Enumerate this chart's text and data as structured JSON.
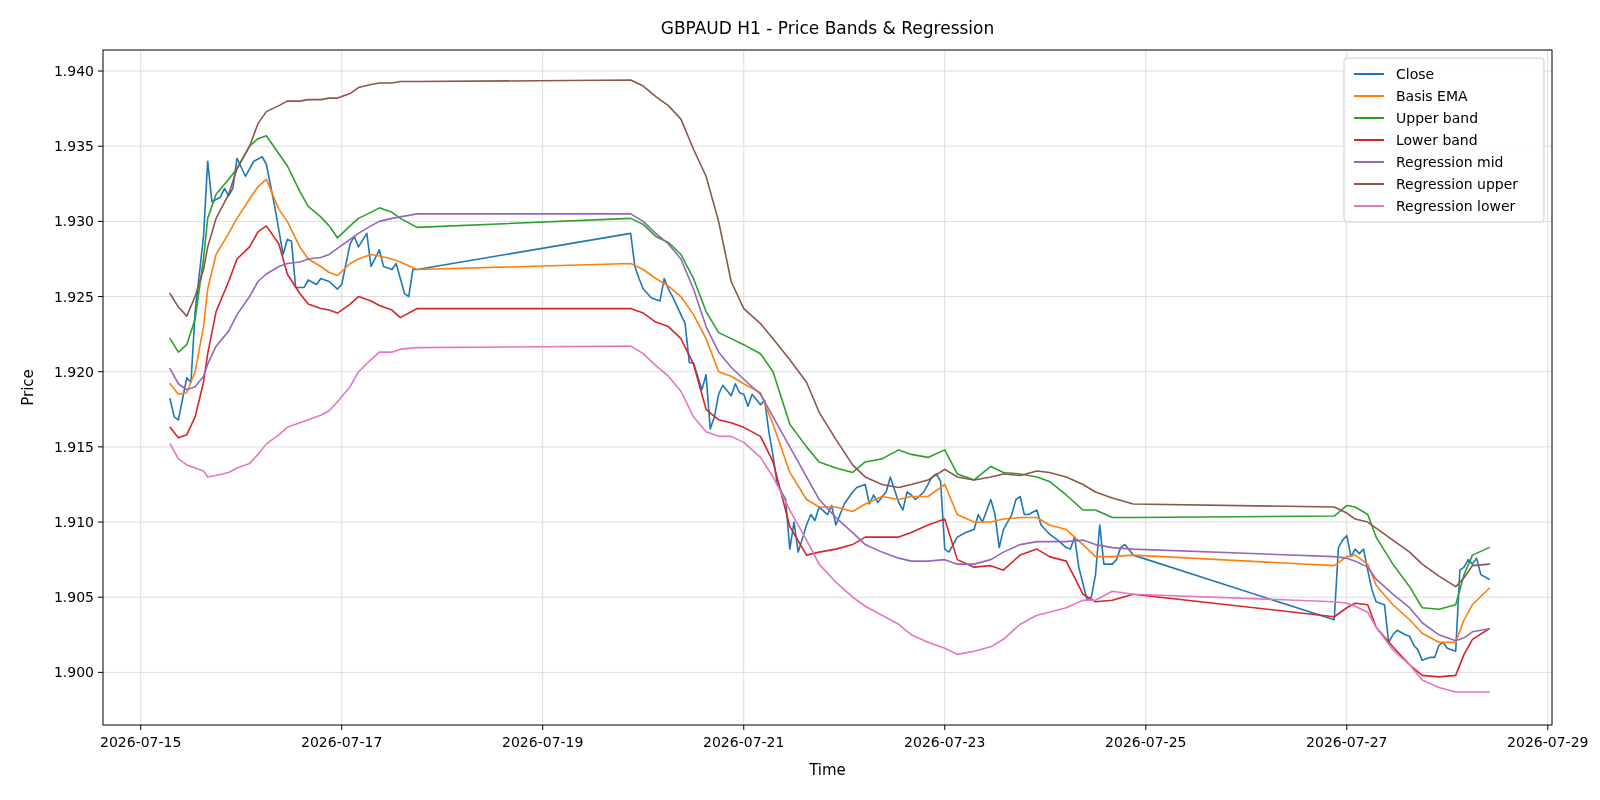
{
  "chart_data": {
    "type": "line",
    "title": "GBPAUD H1 - Price Bands & Regression",
    "xlabel": "Time",
    "ylabel": "Price",
    "x": [
      "2026-07-15T07:00",
      "2026-07-15T09:00",
      "2026-07-15T11:00",
      "2026-07-15T13:00",
      "2026-07-15T15:00",
      "2026-07-15T16:00",
      "2026-07-15T18:00",
      "2026-07-15T21:00",
      "2026-07-15T23:00",
      "2026-07-16T02:00",
      "2026-07-16T04:00",
      "2026-07-16T06:00",
      "2026-07-16T09:00",
      "2026-07-16T11:00",
      "2026-07-16T14:00",
      "2026-07-16T16:00",
      "2026-07-16T19:00",
      "2026-07-16T21:00",
      "2026-07-16T23:00",
      "2026-07-17T02:00",
      "2026-07-17T04:00",
      "2026-07-17T07:00",
      "2026-07-17T09:00",
      "2026-07-17T12:00",
      "2026-07-17T14:00",
      "2026-07-17T18:00",
      "2026-07-19T21:00",
      "2026-07-20T00:00",
      "2026-07-20T03:00",
      "2026-07-20T06:00",
      "2026-07-20T09:00",
      "2026-07-20T12:00",
      "2026-07-20T15:00",
      "2026-07-20T18:00",
      "2026-07-20T21:00",
      "2026-07-21T00:00",
      "2026-07-21T04:00",
      "2026-07-21T07:00",
      "2026-07-21T11:00",
      "2026-07-21T15:00",
      "2026-07-21T18:00",
      "2026-07-21T22:00",
      "2026-07-22T02:00",
      "2026-07-22T05:00",
      "2026-07-22T09:00",
      "2026-07-22T13:00",
      "2026-07-22T16:00",
      "2026-07-22T20:00",
      "2026-07-23T00:00",
      "2026-07-23T03:00",
      "2026-07-23T07:00",
      "2026-07-23T11:00",
      "2026-07-23T14:00",
      "2026-07-23T18:00",
      "2026-07-23T22:00",
      "2026-07-24T01:00",
      "2026-07-24T05:00",
      "2026-07-24T09:00",
      "2026-07-24T12:00",
      "2026-07-24T16:00",
      "2026-07-24T21:00",
      "2026-07-26T21:00",
      "2026-07-27T00:00",
      "2026-07-27T02:00",
      "2026-07-27T05:00",
      "2026-07-27T07:00",
      "2026-07-27T11:00",
      "2026-07-27T15:00",
      "2026-07-27T18:00",
      "2026-07-27T22:00",
      "2026-07-28T02:00",
      "2026-07-28T04:00",
      "2026-07-28T06:00",
      "2026-07-28T10:00"
    ],
    "series": [
      {
        "name": "Close",
        "color": "#1f77b4",
        "x": [
          "2026-07-15T07:00",
          "2026-07-15T08:00",
          "2026-07-15T09:00",
          "2026-07-15T11:00",
          "2026-07-15T12:00",
          "2026-07-15T13:00",
          "2026-07-15T15:00",
          "2026-07-15T16:00",
          "2026-07-15T17:00",
          "2026-07-15T19:00",
          "2026-07-15T20:00",
          "2026-07-15T21:00",
          "2026-07-15T22:00",
          "2026-07-15T23:00",
          "2026-07-16T01:00",
          "2026-07-16T03:00",
          "2026-07-16T05:00",
          "2026-07-16T06:00",
          "2026-07-16T08:00",
          "2026-07-16T10:00",
          "2026-07-16T11:00",
          "2026-07-16T12:00",
          "2026-07-16T13:00",
          "2026-07-16T15:00",
          "2026-07-16T16:00",
          "2026-07-16T18:00",
          "2026-07-16T19:00",
          "2026-07-16T21:00",
          "2026-07-16T23:00",
          "2026-07-17T00:00",
          "2026-07-17T02:00",
          "2026-07-17T03:00",
          "2026-07-17T04:00",
          "2026-07-17T06:00",
          "2026-07-17T07:00",
          "2026-07-17T09:00",
          "2026-07-17T10:00",
          "2026-07-17T12:00",
          "2026-07-17T13:00",
          "2026-07-17T15:00",
          "2026-07-17T16:00",
          "2026-07-17T17:00",
          "2026-07-17T18:00",
          "2026-07-19T21:00",
          "2026-07-19T22:00",
          "2026-07-19T23:00",
          "2026-07-20T00:00",
          "2026-07-20T02:00",
          "2026-07-20T04:00",
          "2026-07-20T05:00",
          "2026-07-20T06:00",
          "2026-07-20T07:00",
          "2026-07-20T09:00",
          "2026-07-20T10:00",
          "2026-07-20T11:00",
          "2026-07-20T12:00",
          "2026-07-20T14:00",
          "2026-07-20T15:00",
          "2026-07-20T16:00",
          "2026-07-20T17:00",
          "2026-07-20T18:00",
          "2026-07-20T19:00",
          "2026-07-20T21:00",
          "2026-07-20T22:00",
          "2026-07-20T23:00",
          "2026-07-21T00:00",
          "2026-07-21T01:00",
          "2026-07-21T02:00",
          "2026-07-21T04:00",
          "2026-07-21T05:00",
          "2026-07-21T06:00",
          "2026-07-21T07:00",
          "2026-07-21T08:00",
          "2026-07-21T10:00",
          "2026-07-21T11:00",
          "2026-07-21T12:00",
          "2026-07-21T13:00",
          "2026-07-21T15:00",
          "2026-07-21T16:00",
          "2026-07-21T17:00",
          "2026-07-21T18:00",
          "2026-07-21T20:00",
          "2026-07-21T21:00",
          "2026-07-21T22:00",
          "2026-07-21T23:00",
          "2026-07-22T00:00",
          "2026-07-22T02:00",
          "2026-07-22T03:00",
          "2026-07-22T05:00",
          "2026-07-22T06:00",
          "2026-07-22T07:00",
          "2026-07-22T08:00",
          "2026-07-22T10:00",
          "2026-07-22T11:00",
          "2026-07-22T13:00",
          "2026-07-22T14:00",
          "2026-07-22T15:00",
          "2026-07-22T16:00",
          "2026-07-22T17:00",
          "2026-07-22T19:00",
          "2026-07-22T20:00",
          "2026-07-22T21:00",
          "2026-07-22T22:00",
          "2026-07-22T23:00",
          "2026-07-23T00:00",
          "2026-07-23T01:00",
          "2026-07-23T02:00",
          "2026-07-23T03:00",
          "2026-07-23T05:00",
          "2026-07-23T07:00",
          "2026-07-23T08:00",
          "2026-07-23T09:00",
          "2026-07-23T11:00",
          "2026-07-23T12:00",
          "2026-07-23T13:00",
          "2026-07-23T14:00",
          "2026-07-23T16:00",
          "2026-07-23T17:00",
          "2026-07-23T18:00",
          "2026-07-23T19:00",
          "2026-07-23T20:00",
          "2026-07-23T22:00",
          "2026-07-23T23:00",
          "2026-07-24T01:00",
          "2026-07-24T03:00",
          "2026-07-24T05:00",
          "2026-07-24T06:00",
          "2026-07-24T07:00",
          "2026-07-24T08:00",
          "2026-07-24T10:00",
          "2026-07-24T11:00",
          "2026-07-24T12:00",
          "2026-07-24T13:00",
          "2026-07-24T14:00",
          "2026-07-24T16:00",
          "2026-07-24T17:00",
          "2026-07-24T18:00",
          "2026-07-24T19:00",
          "2026-07-24T21:00",
          "2026-07-26T21:00",
          "2026-07-26T22:00",
          "2026-07-26T23:00",
          "2026-07-27T00:00",
          "2026-07-27T01:00",
          "2026-07-27T02:00",
          "2026-07-27T03:00",
          "2026-07-27T04:00",
          "2026-07-27T05:00",
          "2026-07-27T06:00",
          "2026-07-27T07:00",
          "2026-07-27T09:00",
          "2026-07-27T10:00",
          "2026-07-27T11:00",
          "2026-07-27T12:00",
          "2026-07-27T14:00",
          "2026-07-27T15:00",
          "2026-07-27T16:00",
          "2026-07-27T17:00",
          "2026-07-27T18:00",
          "2026-07-27T20:00",
          "2026-07-27T21:00",
          "2026-07-27T22:00",
          "2026-07-27T23:00",
          "2026-07-28T00:00",
          "2026-07-28T02:00",
          "2026-07-28T03:00",
          "2026-07-28T04:00",
          "2026-07-28T05:00",
          "2026-07-28T06:00",
          "2026-07-28T07:00",
          "2026-07-28T08:00",
          "2026-07-28T10:00"
        ],
        "values": [
          1.9182,
          1.917,
          1.9168,
          1.9196,
          1.9193,
          1.924,
          1.929,
          1.934,
          1.9313,
          1.9316,
          1.9322,
          1.9317,
          1.9322,
          1.9342,
          1.933,
          1.934,
          1.9343,
          1.9338,
          1.931,
          1.9278,
          1.9288,
          1.9287,
          1.9256,
          1.9256,
          1.9261,
          1.9258,
          1.9262,
          1.926,
          1.9255,
          1.9258,
          1.9285,
          1.929,
          1.9283,
          1.9292,
          1.927,
          1.9281,
          1.927,
          1.9268,
          1.9272,
          1.9252,
          1.925,
          1.9268,
          1.9268,
          1.9292,
          1.927,
          1.9262,
          1.9255,
          1.9249,
          1.9247,
          1.9262,
          1.9255,
          1.925,
          1.9238,
          1.9232,
          1.9206,
          1.9206,
          1.9188,
          1.9198,
          1.9162,
          1.917,
          1.9185,
          1.9191,
          1.9184,
          1.9192,
          1.9186,
          1.9185,
          1.9177,
          1.9185,
          1.9178,
          1.9181,
          1.916,
          1.9144,
          1.9125,
          1.9115,
          1.9082,
          1.91,
          1.908,
          1.9098,
          1.9105,
          1.9101,
          1.911,
          1.9105,
          1.9111,
          1.9098,
          1.9105,
          1.9112,
          1.912,
          1.9123,
          1.9125,
          1.9112,
          1.9118,
          1.9113,
          1.912,
          1.913,
          1.9113,
          1.9108,
          1.912,
          1.9118,
          1.9115,
          1.912,
          1.9125,
          1.913,
          1.9132,
          1.9127,
          1.9082,
          1.908,
          1.9085,
          1.909,
          1.9093,
          1.9095,
          1.9105,
          1.91,
          1.9115,
          1.9105,
          1.9083,
          1.9095,
          1.9105,
          1.9115,
          1.9117,
          1.9105,
          1.9105,
          1.9108,
          1.9098,
          1.9092,
          1.9088,
          1.9083,
          1.9082,
          1.909,
          1.907,
          1.9048,
          1.905,
          1.9065,
          1.9098,
          1.9072,
          1.9072,
          1.9075,
          1.9083,
          1.9085,
          1.9078,
          1.9035,
          1.9083,
          1.9088,
          1.9091,
          1.9077,
          1.9082,
          1.9079,
          1.9082,
          1.9068,
          1.9055,
          1.9047,
          1.9045,
          1.902,
          1.9025,
          1.9028,
          1.9025,
          1.9024,
          1.9018,
          1.9015,
          1.9008,
          1.901,
          1.901,
          1.9018,
          1.902,
          1.9016,
          1.9014,
          1.9068,
          1.907,
          1.9075,
          1.9072,
          1.9076,
          1.9065,
          1.9062
        ]
      },
      {
        "name": "Basis EMA",
        "color": "#ff7f0e",
        "values": [
          1.9192,
          1.9185,
          1.9186,
          1.92,
          1.923,
          1.9255,
          1.9278,
          1.9292,
          1.9302,
          1.9315,
          1.9323,
          1.9328,
          1.9308,
          1.93,
          1.9283,
          1.9275,
          1.927,
          1.9266,
          1.9264,
          1.9272,
          1.9275,
          1.9278,
          1.9277,
          1.9275,
          1.9273,
          1.9268,
          1.9272,
          1.9268,
          1.9262,
          1.9257,
          1.925,
          1.9238,
          1.9222,
          1.92,
          1.9197,
          1.9192,
          1.9186,
          1.9165,
          1.9133,
          1.9115,
          1.911,
          1.911,
          1.9107,
          1.9112,
          1.9117,
          1.9115,
          1.9117,
          1.9117,
          1.9125,
          1.9105,
          1.91,
          1.91,
          1.9102,
          1.9103,
          1.9103,
          1.9098,
          1.9095,
          1.9085,
          1.9077,
          1.9077,
          1.9078,
          1.9071,
          1.9077,
          1.9078,
          1.9072,
          1.9058,
          1.9045,
          1.9035,
          1.9026,
          1.902,
          1.902,
          1.9035,
          1.9045,
          1.9056
        ]
      },
      {
        "name": "Upper band",
        "color": "#2ca02c",
        "values": [
          1.9222,
          1.9213,
          1.9218,
          1.9235,
          1.9275,
          1.9302,
          1.9318,
          1.9328,
          1.9335,
          1.935,
          1.9355,
          1.9357,
          1.9345,
          1.9337,
          1.932,
          1.931,
          1.9303,
          1.9297,
          1.9289,
          1.9297,
          1.9302,
          1.9306,
          1.9309,
          1.9306,
          1.9302,
          1.9296,
          1.9302,
          1.9298,
          1.929,
          1.9286,
          1.9278,
          1.9262,
          1.924,
          1.9226,
          1.9222,
          1.9218,
          1.9212,
          1.92,
          1.9165,
          1.915,
          1.914,
          1.9136,
          1.9133,
          1.914,
          1.9142,
          1.9148,
          1.9145,
          1.9143,
          1.9148,
          1.9132,
          1.9128,
          1.9137,
          1.9133,
          1.9132,
          1.913,
          1.9127,
          1.9118,
          1.9108,
          1.9108,
          1.9103,
          1.9103,
          1.9104,
          1.9111,
          1.911,
          1.9105,
          1.909,
          1.9072,
          1.9057,
          1.9043,
          1.9042,
          1.9045,
          1.9065,
          1.9078,
          1.9083
        ]
      },
      {
        "name": "Lower band",
        "color": "#d62728",
        "values": [
          1.9163,
          1.9156,
          1.9158,
          1.917,
          1.9193,
          1.9212,
          1.924,
          1.926,
          1.9275,
          1.9283,
          1.9293,
          1.9297,
          1.9285,
          1.9265,
          1.9252,
          1.9245,
          1.9242,
          1.9241,
          1.9239,
          1.9245,
          1.925,
          1.9247,
          1.9244,
          1.9241,
          1.9236,
          1.9242,
          1.9242,
          1.9239,
          1.9233,
          1.923,
          1.9222,
          1.9205,
          1.9175,
          1.9168,
          1.9166,
          1.9163,
          1.9157,
          1.914,
          1.9097,
          1.9078,
          1.908,
          1.9082,
          1.9085,
          1.909,
          1.909,
          1.909,
          1.9093,
          1.9098,
          1.9102,
          1.9075,
          1.907,
          1.9071,
          1.9068,
          1.9078,
          1.9082,
          1.9077,
          1.9074,
          1.9052,
          1.9047,
          1.9048,
          1.9052,
          1.9037,
          1.9043,
          1.9046,
          1.9045,
          1.903,
          1.9017,
          1.9005,
          1.8998,
          1.8997,
          1.8998,
          1.9012,
          1.9022,
          1.9029
        ]
      },
      {
        "name": "Regression mid",
        "color": "#9467bd",
        "values": [
          1.9202,
          1.9192,
          1.9188,
          1.919,
          1.9197,
          1.9205,
          1.9217,
          1.9227,
          1.9238,
          1.925,
          1.926,
          1.9265,
          1.927,
          1.9272,
          1.9273,
          1.9275,
          1.9276,
          1.9278,
          1.9282,
          1.9288,
          1.9292,
          1.9297,
          1.93,
          1.9302,
          1.9303,
          1.9305,
          1.9305,
          1.93,
          1.9292,
          1.9285,
          1.9275,
          1.9255,
          1.923,
          1.9213,
          1.9203,
          1.9195,
          1.9185,
          1.917,
          1.915,
          1.913,
          1.9115,
          1.9103,
          1.9093,
          1.9085,
          1.908,
          1.9076,
          1.9074,
          1.9074,
          1.9075,
          1.9072,
          1.9072,
          1.9075,
          1.908,
          1.9085,
          1.9087,
          1.9087,
          1.9087,
          1.9088,
          1.9085,
          1.9083,
          1.9082,
          1.9077,
          1.9076,
          1.9074,
          1.907,
          1.9062,
          1.9052,
          1.9043,
          1.9033,
          1.9025,
          1.9021,
          1.9023,
          1.9027,
          1.9029
        ]
      },
      {
        "name": "Regression upper",
        "color": "#8c564b",
        "values": [
          1.9252,
          1.9243,
          1.9237,
          1.925,
          1.9268,
          1.9283,
          1.9302,
          1.9318,
          1.9335,
          1.935,
          1.9365,
          1.9373,
          1.9377,
          1.938,
          1.938,
          1.9381,
          1.9381,
          1.9382,
          1.9382,
          1.9385,
          1.9389,
          1.9391,
          1.9392,
          1.9392,
          1.9393,
          1.9393,
          1.9394,
          1.939,
          1.9383,
          1.9377,
          1.9368,
          1.9348,
          1.933,
          1.93,
          1.926,
          1.9242,
          1.9232,
          1.9222,
          1.9208,
          1.9193,
          1.9173,
          1.9155,
          1.9138,
          1.913,
          1.9125,
          1.9123,
          1.9125,
          1.9128,
          1.9135,
          1.913,
          1.9128,
          1.913,
          1.9132,
          1.9131,
          1.9134,
          1.9133,
          1.913,
          1.9125,
          1.912,
          1.9116,
          1.9112,
          1.911,
          1.9106,
          1.9102,
          1.91,
          1.9096,
          1.9088,
          1.908,
          1.9072,
          1.9064,
          1.9057,
          1.9063,
          1.9071,
          1.9072
        ]
      },
      {
        "name": "Regression lower",
        "color": "#e377c2",
        "values": [
          1.9152,
          1.9142,
          1.9138,
          1.9136,
          1.9134,
          1.913,
          1.9131,
          1.9133,
          1.9136,
          1.9139,
          1.9145,
          1.9152,
          1.9158,
          1.9163,
          1.9166,
          1.9168,
          1.9171,
          1.9174,
          1.918,
          1.919,
          1.92,
          1.9208,
          1.9213,
          1.9213,
          1.9215,
          1.9216,
          1.9217,
          1.9212,
          1.9204,
          1.9197,
          1.9187,
          1.917,
          1.916,
          1.9157,
          1.9157,
          1.9153,
          1.9143,
          1.913,
          1.9108,
          1.9088,
          1.9072,
          1.906,
          1.905,
          1.9044,
          1.9038,
          1.9032,
          1.9025,
          1.902,
          1.9016,
          1.9012,
          1.9014,
          1.9017,
          1.9022,
          1.9032,
          1.9038,
          1.904,
          1.9043,
          1.9048,
          1.9048,
          1.9054,
          1.9052,
          1.9047,
          1.9046,
          1.9044,
          1.904,
          1.903,
          1.9015,
          1.9005,
          1.8995,
          1.899,
          1.8987,
          1.8987,
          1.8987,
          1.8987
        ]
      }
    ],
    "xlim": [
      "2026-07-14T15:00",
      "2026-07-29T01:00"
    ],
    "xticks": [
      "2026-07-15",
      "2026-07-17",
      "2026-07-19",
      "2026-07-21",
      "2026-07-23",
      "2026-07-25",
      "2026-07-27",
      "2026-07-29"
    ],
    "ylim": [
      1.8965,
      1.9414
    ],
    "yticks": [
      {
        "value": 1.9,
        "label": "1.900"
      },
      {
        "value": 1.905,
        "label": "1.905"
      },
      {
        "value": 1.91,
        "label": "1.910"
      },
      {
        "value": 1.915,
        "label": "1.915"
      },
      {
        "value": 1.92,
        "label": "1.920"
      },
      {
        "value": 1.925,
        "label": "1.925"
      },
      {
        "value": 1.93,
        "label": "1.930"
      },
      {
        "value": 1.935,
        "label": "1.935"
      },
      {
        "value": 1.94,
        "label": "1.940"
      }
    ],
    "grid": true,
    "legend": "top right",
    "marker": "none",
    "line_style": "solid"
  }
}
